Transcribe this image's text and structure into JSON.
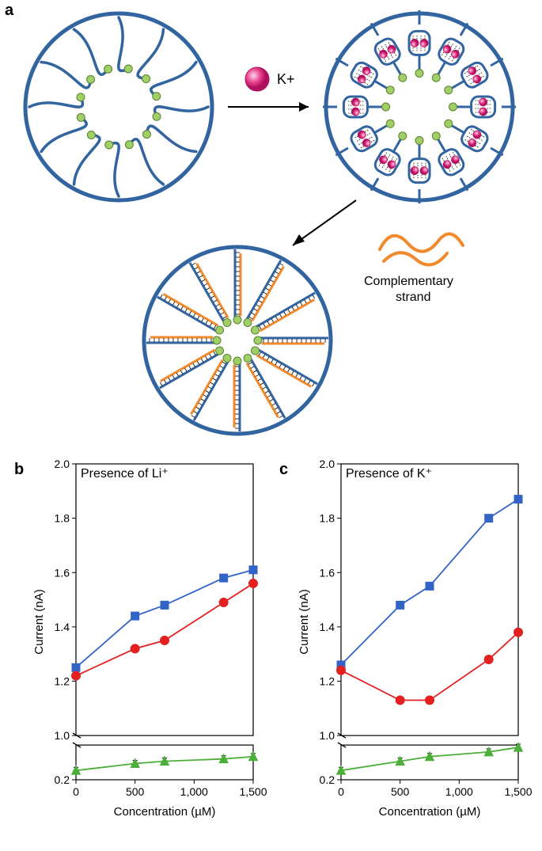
{
  "panel_a": {
    "label": "a",
    "ion_label": "K+",
    "complementary_label": "Complementary\nstrand",
    "circle_stroke": "#3264a0",
    "strand_stroke": "#3264a0",
    "dot_fill": "#9fcf66",
    "ion_fill": "#e83f8c",
    "ion_highlight": "#ffd4e8",
    "comp_strand_color": "#f08a2c",
    "arrow_color": "#000000"
  },
  "chart_b": {
    "label": "b",
    "title": "Presence of Li⁺",
    "xlabel": "Concentration (µM)",
    "ylabel": "Current (nA)",
    "xlim": [
      0,
      1500
    ],
    "xticks": [
      0,
      500,
      1000,
      1500
    ],
    "xtick_labels": [
      "0",
      "500",
      "1,000",
      "1,500"
    ],
    "ylim_top": [
      1.0,
      2.0
    ],
    "yticks_top": [
      1.0,
      1.2,
      1.4,
      1.6,
      1.8,
      2.0
    ],
    "ylim_bottom": [
      0.2,
      0.35
    ],
    "yticks_bottom": [
      0.2
    ],
    "background": "#ffffff",
    "border_color": "#000000",
    "axis_fontsize": 14,
    "label_fontsize": 15,
    "series": [
      {
        "name": "blue-squares",
        "color": "#3264c8",
        "marker": "square",
        "x": [
          0,
          500,
          750,
          1250,
          1500
        ],
        "y": [
          1.25,
          1.44,
          1.48,
          1.58,
          1.61
        ]
      },
      {
        "name": "red-circles",
        "color": "#e42020",
        "marker": "circle",
        "x": [
          0,
          500,
          750,
          1250,
          1500
        ],
        "y": [
          1.22,
          1.32,
          1.35,
          1.49,
          1.56
        ]
      },
      {
        "name": "green-triangles",
        "color": "#4caf3a",
        "marker": "triangle",
        "x": [
          0,
          500,
          750,
          1250,
          1500
        ],
        "y": [
          0.24,
          0.27,
          0.28,
          0.29,
          0.3
        ]
      }
    ]
  },
  "chart_c": {
    "label": "c",
    "title": "Presence of K⁺",
    "xlabel": "Concentration (µM)",
    "ylabel": "Current (nA)",
    "xlim": [
      0,
      1500
    ],
    "xticks": [
      0,
      500,
      1000,
      1500
    ],
    "xtick_labels": [
      "0",
      "500",
      "1,000",
      "1,500"
    ],
    "ylim_top": [
      1.0,
      2.0
    ],
    "yticks_top": [
      1.0,
      1.2,
      1.4,
      1.6,
      1.8,
      2.0
    ],
    "ylim_bottom": [
      0.2,
      0.35
    ],
    "yticks_bottom": [
      0.2
    ],
    "background": "#ffffff",
    "border_color": "#000000",
    "axis_fontsize": 14,
    "label_fontsize": 15,
    "series": [
      {
        "name": "blue-squares",
        "color": "#3264c8",
        "marker": "square",
        "x": [
          0,
          500,
          750,
          1250,
          1500
        ],
        "y": [
          1.26,
          1.48,
          1.55,
          1.8,
          1.87
        ]
      },
      {
        "name": "red-circles",
        "color": "#e42020",
        "marker": "circle",
        "x": [
          0,
          500,
          750,
          1250,
          1500
        ],
        "y": [
          1.24,
          1.13,
          1.13,
          1.28,
          1.38
        ]
      },
      {
        "name": "green-triangles",
        "color": "#4caf3a",
        "marker": "triangle",
        "x": [
          0,
          500,
          750,
          1250,
          1500
        ],
        "y": [
          0.24,
          0.28,
          0.3,
          0.32,
          0.34
        ]
      }
    ]
  }
}
